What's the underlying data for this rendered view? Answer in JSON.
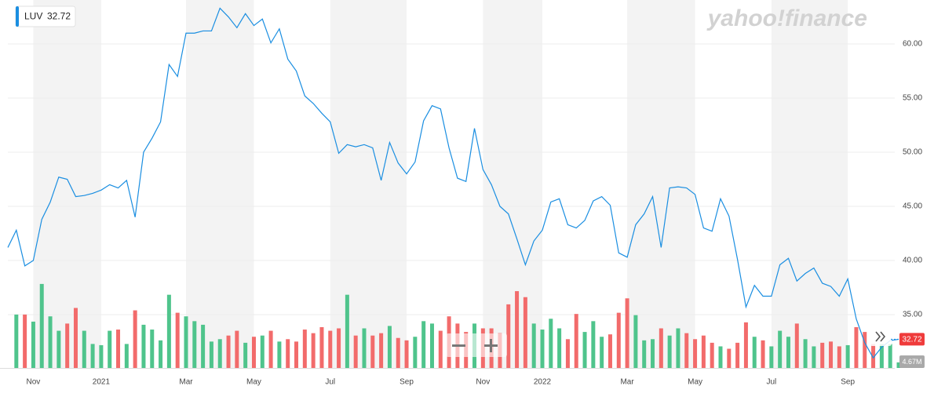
{
  "chart_data": {
    "type": "line",
    "logo": "yahoo!finance",
    "categories": [
      null,
      null,
      null,
      "Nov",
      null,
      null,
      null,
      null,
      null,
      null,
      null,
      "2021",
      null,
      null,
      null,
      null,
      null,
      null,
      null,
      null,
      null,
      "Mar",
      null,
      null,
      null,
      null,
      null,
      null,
      null,
      "May",
      null,
      null,
      null,
      null,
      null,
      null,
      null,
      null,
      "Jul",
      null,
      null,
      null,
      null,
      null,
      null,
      null,
      null,
      "Sep",
      null,
      null,
      null,
      null,
      null,
      null,
      null,
      null,
      "Nov",
      null,
      null,
      null,
      null,
      null,
      null,
      "2022",
      null,
      null,
      null,
      null,
      null,
      null,
      null,
      null,
      null,
      "Mar",
      null,
      null,
      null,
      null,
      null,
      null,
      null,
      "May",
      null,
      null,
      null,
      null,
      null,
      null,
      null,
      null,
      "Jul",
      null,
      null,
      null,
      null,
      null,
      null,
      null,
      null,
      "Sep",
      null,
      null,
      null,
      null,
      null,
      null
    ],
    "series": [
      {
        "name": "LUV",
        "color": "#1a8ee1",
        "values": [
          41.2,
          42.8,
          39.5,
          40.0,
          43.8,
          45.4,
          47.7,
          47.5,
          45.9,
          46.0,
          46.2,
          46.5,
          47.0,
          46.7,
          47.4,
          44.0,
          50.0,
          51.3,
          52.8,
          58.1,
          57.0,
          61.0,
          61.0,
          61.2,
          61.2,
          63.3,
          62.5,
          61.5,
          62.8,
          61.7,
          62.3,
          60.1,
          61.4,
          58.6,
          57.5,
          55.2,
          54.5,
          53.6,
          52.8,
          49.9,
          50.7,
          50.5,
          50.7,
          50.4,
          47.4,
          50.9,
          49.0,
          48.0,
          49.1,
          52.9,
          54.3,
          54.0,
          50.4,
          47.6,
          47.3,
          52.2,
          48.4,
          47.0,
          45.0,
          44.3,
          42.0,
          39.6,
          41.8,
          42.8,
          45.4,
          45.7,
          43.3,
          43.0,
          43.7,
          45.5,
          45.9,
          45.1,
          40.7,
          40.3,
          43.3,
          44.3,
          45.9,
          41.2,
          46.7,
          46.8,
          46.7,
          46.1,
          43.0,
          42.7,
          45.7,
          44.1,
          40.1,
          35.7,
          37.7,
          36.7,
          36.7,
          39.6,
          40.2,
          38.1,
          38.8,
          39.3,
          37.9,
          37.6,
          36.7,
          38.3,
          34.6,
          32.4,
          31.0,
          32.0,
          32.6,
          32.72
        ]
      },
      {
        "type": "bar",
        "axis": "y2",
        "up_color": "#4fc48c",
        "down_color": "#f26b6b",
        "values": [
          null,
          44.5,
          44.5,
          38.6,
          70,
          43,
          31,
          37,
          50,
          31,
          20,
          19,
          31,
          32,
          20,
          48,
          36,
          32,
          23,
          61,
          46,
          43,
          39,
          36,
          22,
          24,
          27,
          31,
          21,
          26,
          27,
          31,
          22,
          24,
          22,
          32,
          29,
          34,
          31,
          33,
          61,
          27,
          33,
          27,
          29,
          35,
          25,
          23,
          26,
          39,
          37,
          31,
          43,
          37,
          30,
          37,
          33,
          33,
          29,
          53,
          64,
          59,
          37,
          32,
          41,
          33,
          24,
          45,
          30,
          39,
          26,
          28,
          46,
          58,
          44,
          23,
          24,
          33,
          27,
          33,
          29,
          24,
          27,
          21,
          18,
          16,
          21,
          38,
          26,
          23,
          18,
          31,
          26,
          37,
          24,
          18,
          21,
          22,
          18,
          19,
          34,
          30,
          20,
          20,
          20,
          4.67
        ],
        "value_labels": [
          null,
          null,
          null,
          null,
          null,
          null,
          null,
          null,
          null,
          null,
          null,
          null,
          null,
          null,
          null,
          null,
          null,
          null,
          null,
          null,
          null,
          null,
          null,
          null,
          null,
          null,
          null,
          null,
          null,
          null,
          null,
          null,
          null,
          null,
          null,
          null,
          null,
          null,
          null,
          null,
          null,
          null,
          null,
          null,
          null,
          null,
          null,
          null,
          null,
          null,
          null,
          null,
          null,
          null,
          null,
          null,
          null,
          null,
          null,
          null,
          null,
          null,
          null,
          null,
          null,
          null,
          null,
          null,
          null,
          null,
          null,
          null,
          null,
          null,
          null,
          null,
          null,
          null,
          null,
          null,
          null,
          null,
          null,
          null,
          null,
          null,
          null,
          null,
          null,
          null,
          null,
          null,
          null,
          null,
          null,
          null,
          null,
          null,
          null,
          null,
          null,
          null,
          null,
          null,
          null,
          "4.67M"
        ]
      }
    ],
    "ylim": [
      30.07,
      64.06
    ],
    "yticks": [
      {
        "value": 35,
        "label": "35.00"
      },
      {
        "value": 40,
        "label": "40.00"
      },
      {
        "value": 45,
        "label": "45.00"
      },
      {
        "value": 50,
        "label": "50.00"
      },
      {
        "value": 55,
        "label": "55.00"
      },
      {
        "value": 60,
        "label": "60.00"
      }
    ],
    "y2lim": [
      0,
      100
    ],
    "grid": true,
    "band_color": "#f3f3f3"
  }
}
